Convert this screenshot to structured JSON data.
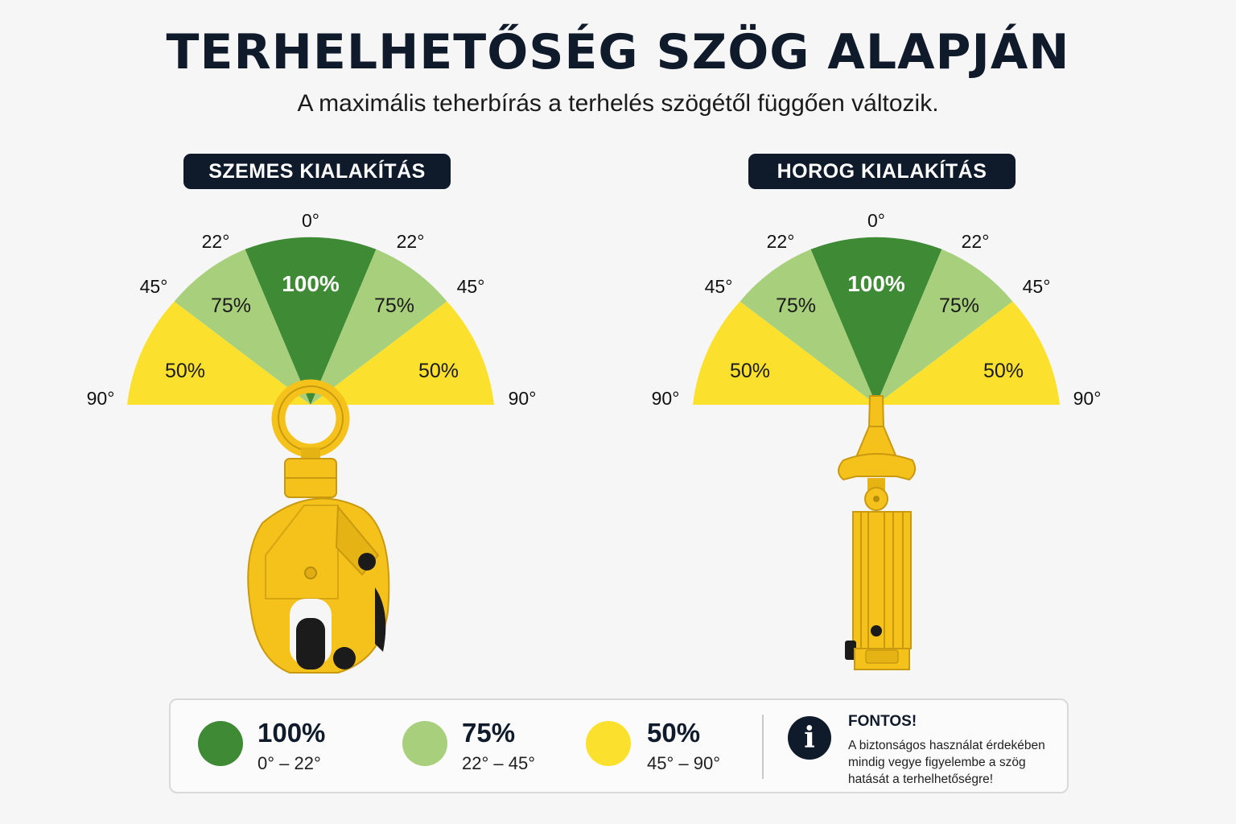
{
  "title": "TERHELHETŐSÉG SZÖG ALAPJÁN",
  "subtitle": "A maximális teherbírás a terhelés szögétől függően változik.",
  "colors": {
    "green_dark": "#3f8a35",
    "green_light": "#a8cf7c",
    "yellow": "#fbe12d",
    "navy": "#0f1a2b",
    "clamp_yellow": "#f4c21a"
  },
  "panels": [
    {
      "label": "SZEMES KIALAKÍTÁS",
      "angle_labels": {
        "top": "0°",
        "left_22": "22°",
        "right_22": "22°",
        "left_45": "45°",
        "right_45": "45°",
        "left_90": "90°",
        "right_90": "90°"
      },
      "zone_labels": {
        "center": "100%",
        "left_mid": "75%",
        "right_mid": "75%",
        "left_outer": "50%",
        "right_outer": "50%"
      },
      "icon": "eye-clamp-icon"
    },
    {
      "label": "HOROG KIALAKÍTÁS",
      "angle_labels": {
        "top": "0°",
        "left_22": "22°",
        "right_22": "22°",
        "left_45": "45°",
        "right_45": "45°",
        "left_90": "90°",
        "right_90": "90°"
      },
      "zone_labels": {
        "center": "100%",
        "left_mid": "75%",
        "right_mid": "75%",
        "left_outer": "50%",
        "right_outer": "50%"
      },
      "icon": "hook-clamp-icon"
    }
  ],
  "legend": [
    {
      "pct": "100%",
      "range": "0° – 22°",
      "color": "#3f8a35"
    },
    {
      "pct": "75%",
      "range": "22° – 45°",
      "color": "#a8cf7c"
    },
    {
      "pct": "50%",
      "range": "45° – 90°",
      "color": "#fbe12d"
    }
  ],
  "note": {
    "icon": "info-icon",
    "icon_glyph": "i",
    "title": "FONTOS!",
    "text": "A biztonságos használat érdekében mindig vegye figyelembe a szög hatását a terhelhetőségre!"
  }
}
